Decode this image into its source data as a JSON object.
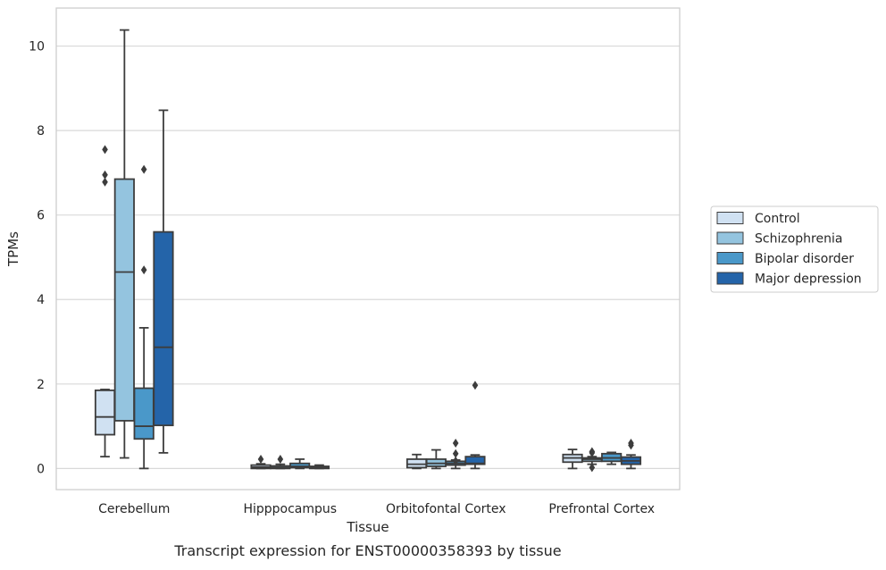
{
  "chart_data": {
    "type": "box",
    "title": "Transcript expression for ENST00000358393 by tissue",
    "xlabel": "Tissue",
    "ylabel": "TPMs",
    "ylim": [
      -0.5,
      10.9
    ],
    "yticks": [
      0,
      2,
      4,
      6,
      8,
      10
    ],
    "grid": "horizontal",
    "legend_position": "right",
    "categories": [
      "Cerebellum",
      "Hipppocampus",
      "Orbitofontal Cortex",
      "Prefrontal Cortex"
    ],
    "series": [
      {
        "name": "Control",
        "color": "#d0e1f2",
        "boxes": [
          {
            "whislo": 0.28,
            "q1": 0.8,
            "med": 1.22,
            "q3": 1.85,
            "whishi": 1.87,
            "fliers": [
              6.78,
              6.95,
              7.55
            ]
          },
          {
            "whislo": 0.0,
            "q1": 0.0,
            "med": 0.03,
            "q3": 0.08,
            "whishi": 0.11,
            "fliers": [
              0.22
            ]
          },
          {
            "whislo": 0.0,
            "q1": 0.02,
            "med": 0.1,
            "q3": 0.22,
            "whishi": 0.33,
            "fliers": []
          },
          {
            "whislo": 0.0,
            "q1": 0.15,
            "med": 0.25,
            "q3": 0.33,
            "whishi": 0.45,
            "fliers": []
          }
        ]
      },
      {
        "name": "Schizophrenia",
        "color": "#94c4df",
        "boxes": [
          {
            "whislo": 0.25,
            "q1": 1.13,
            "med": 4.65,
            "q3": 6.85,
            "whishi": 10.38,
            "fliers": []
          },
          {
            "whislo": 0.0,
            "q1": 0.0,
            "med": 0.02,
            "q3": 0.06,
            "whishi": 0.1,
            "fliers": [
              0.22
            ]
          },
          {
            "whislo": 0.0,
            "q1": 0.05,
            "med": 0.12,
            "q3": 0.22,
            "whishi": 0.44,
            "fliers": []
          },
          {
            "whislo": 0.1,
            "q1": 0.17,
            "med": 0.22,
            "q3": 0.25,
            "whishi": 0.28,
            "fliers": [
              0.02,
              0.37,
              0.4
            ]
          }
        ]
      },
      {
        "name": "Bipolar disorder",
        "color": "#4a98c9",
        "boxes": [
          {
            "whislo": 0.0,
            "q1": 0.7,
            "med": 1.0,
            "q3": 1.9,
            "whishi": 3.33,
            "fliers": [
              4.7,
              7.08
            ]
          },
          {
            "whislo": 0.0,
            "q1": 0.02,
            "med": 0.05,
            "q3": 0.12,
            "whishi": 0.22,
            "fliers": []
          },
          {
            "whislo": 0.0,
            "q1": 0.08,
            "med": 0.12,
            "q3": 0.17,
            "whishi": 0.2,
            "fliers": [
              0.18,
              0.35,
              0.6
            ]
          },
          {
            "whislo": 0.1,
            "q1": 0.17,
            "med": 0.25,
            "q3": 0.35,
            "whishi": 0.38,
            "fliers": []
          }
        ]
      },
      {
        "name": "Major depression",
        "color": "#2464a9",
        "boxes": [
          {
            "whislo": 0.37,
            "q1": 1.02,
            "med": 2.87,
            "q3": 5.6,
            "whishi": 8.48,
            "fliers": []
          },
          {
            "whislo": 0.0,
            "q1": 0.0,
            "med": 0.02,
            "q3": 0.05,
            "whishi": 0.08,
            "fliers": []
          },
          {
            "whislo": 0.0,
            "q1": 0.1,
            "med": 0.12,
            "q3": 0.28,
            "whishi": 0.32,
            "fliers": [
              1.97
            ]
          },
          {
            "whislo": 0.0,
            "q1": 0.1,
            "med": 0.18,
            "q3": 0.27,
            "whishi": 0.32,
            "fliers": [
              0.55,
              0.6
            ]
          }
        ]
      }
    ]
  }
}
